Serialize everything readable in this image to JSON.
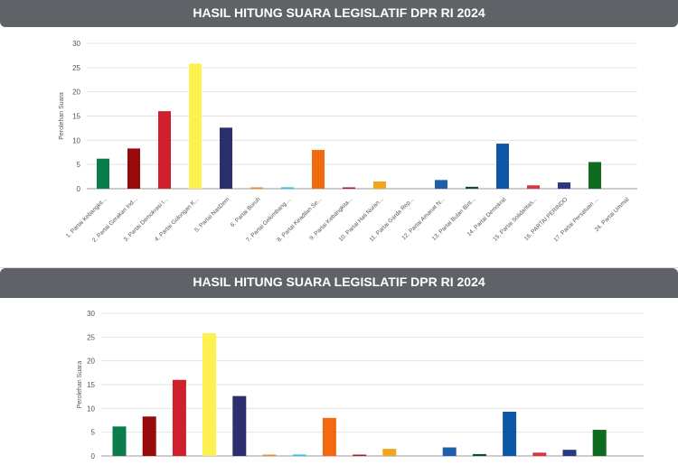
{
  "chart_data": [
    {
      "type": "bar",
      "title": "HASIL HITUNG SUARA LEGISLATIF DPR RI 2024",
      "ylabel": "Perolehan Suara",
      "xlabel": "",
      "ylim": [
        0,
        30
      ],
      "yticks": [
        "0",
        "5",
        "10",
        "15",
        "20",
        "25",
        "30"
      ],
      "grid": true,
      "categories": [
        "1. Partai Kebangkit...",
        "2. Partai Gerakan Ind...",
        "3. Partai Demokrasi I...",
        "4. Partai Golongan K...",
        "5. Partai NasDem",
        "6. Partai Buruh",
        "7. Partai Gelombang ...",
        "8. Partai Keadilan Se...",
        "9. Partai Kebangkita...",
        "10. Partai Hati Nuran...",
        "11. Partai Garda Rep...",
        "12. Partai Amanat N...",
        "13. Partai Bulan Bint...",
        "14. Partai Demokrat",
        "15. Partai Solidaritas...",
        "16. PARTAI PERINDO",
        "17. Partai Persatuan ...",
        "24. Partai Ummat"
      ],
      "values": [
        6.2,
        8.3,
        16.0,
        25.8,
        12.6,
        0.2,
        0.3,
        8.0,
        0.1,
        1.5,
        0.0,
        1.8,
        0.4,
        9.3,
        0.7,
        1.3,
        5.5,
        0.0
      ],
      "colors": [
        "#0b7d4a",
        "#9b0a0a",
        "#d01f2d",
        "#fdf150",
        "#2c2f6e",
        "#f08c2a",
        "#30c5e6",
        "#f26a10",
        "#a61e2a",
        "#f3a51e",
        "#c9342d",
        "#1f5fa8",
        "#0f4d2b",
        "#0c58a6",
        "#df3340",
        "#273a82",
        "#0e6b1f",
        "#1c6e3a"
      ]
    },
    {
      "type": "bar",
      "title": "HASIL HITUNG SUARA LEGISLATIF DPR RI 2024",
      "ylabel": "Perolehan Suara",
      "xlabel": "",
      "ylim": [
        0,
        30
      ],
      "yticks": [
        "0",
        "5",
        "10",
        "15",
        "20",
        "25",
        "30"
      ],
      "grid": true,
      "values": [
        6.2,
        8.3,
        16.0,
        25.8,
        12.6,
        0.2,
        0.3,
        8.0,
        0.1,
        1.5,
        0.0,
        1.8,
        0.4,
        9.3,
        0.7,
        1.3,
        5.5,
        0.0
      ],
      "colors": [
        "#0b7d4a",
        "#9b0a0a",
        "#d01f2d",
        "#fdf150",
        "#2c2f6e",
        "#f08c2a",
        "#30c5e6",
        "#f26a10",
        "#a61e2a",
        "#f3a51e",
        "#c9342d",
        "#1f5fa8",
        "#0f4d2b",
        "#0c58a6",
        "#df3340",
        "#273a82",
        "#0e6b1f",
        "#1c6e3a"
      ]
    }
  ]
}
